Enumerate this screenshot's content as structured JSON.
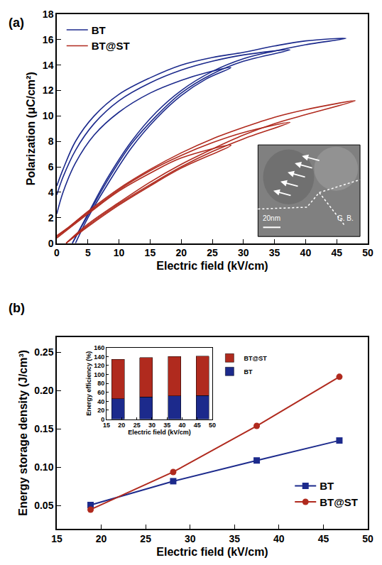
{
  "chart_data": [
    {
      "type": "line",
      "annotations": [
        {
          "text": "(a)"
        },
        {
          "text": "20nm"
        },
        {
          "text": "G. B."
        }
      ],
      "x_label": "Electric field (kV/cm)",
      "y_label": "Polarization (μC/cm²)",
      "xlim": [
        0,
        50
      ],
      "xticks": [
        0,
        5,
        10,
        15,
        20,
        25,
        30,
        35,
        40,
        45,
        50
      ],
      "ylim": [
        0,
        18
      ],
      "yticks": [
        0,
        2,
        4,
        6,
        8,
        10,
        12,
        14,
        16,
        18
      ],
      "legend": "upper left",
      "series": [
        {
          "name": "BT",
          "color": "#1c2a8c",
          "x": [
            3,
            5,
            8,
            12,
            16,
            20,
            24,
            28,
            24,
            20,
            15,
            10,
            6,
            3,
            1,
            0,
            null,
            2.5,
            5,
            8,
            12,
            16,
            20,
            25,
            30,
            37.5,
            30,
            25,
            20,
            15,
            10,
            6,
            3,
            1,
            0,
            null,
            2.5,
            5,
            8,
            12,
            16,
            20,
            25,
            30,
            35,
            40,
            46.5,
            40,
            35,
            30,
            25,
            20,
            15,
            10,
            6,
            3,
            1,
            0
          ],
          "values": [
            0,
            2,
            4.5,
            7.5,
            9.8,
            11.6,
            12.9,
            13.8,
            13.4,
            12.8,
            11.8,
            10.3,
            8.5,
            6.3,
            4,
            2.3,
            null,
            0,
            2.2,
            4.8,
            7.8,
            10,
            11.8,
            13.3,
            14.3,
            15.2,
            14.8,
            14.3,
            13.6,
            12.6,
            11.2,
            9.4,
            7.3,
            5.2,
            3.8,
            null,
            0,
            2.3,
            5,
            8,
            10.3,
            12,
            13.5,
            14.5,
            15.1,
            15.6,
            16.1,
            15.9,
            15.5,
            15,
            14.6,
            14,
            13,
            11.7,
            10,
            8,
            5.8,
            4.5
          ]
        },
        {
          "name": "BT@ST",
          "color": "#b02a1e",
          "x": [
            1.5,
            5,
            10,
            15,
            20,
            28,
            20,
            15,
            10,
            5,
            0,
            null,
            1.5,
            5,
            10,
            15,
            20,
            25,
            30,
            37.5,
            30,
            25,
            20,
            15,
            10,
            5,
            0,
            null,
            1.5,
            5,
            10,
            15,
            20,
            25,
            30,
            35,
            40,
            48,
            40,
            35,
            30,
            25,
            20,
            15,
            10,
            5,
            2,
            0
          ],
          "values": [
            0,
            1.3,
            3,
            4.5,
            5.9,
            7.7,
            6.7,
            5.5,
            4.1,
            2.3,
            0.4,
            null,
            0,
            1.4,
            3.1,
            4.6,
            6,
            7.2,
            8.2,
            9.5,
            8.7,
            7.9,
            6.9,
            5.7,
            4.2,
            2.4,
            0.5,
            null,
            0,
            1.5,
            3.2,
            4.8,
            6.2,
            7.4,
            8.5,
            9.4,
            10.1,
            11.2,
            10.5,
            9.9,
            9.1,
            8.2,
            7.1,
            5.8,
            4.3,
            2.5,
            1.3,
            0.6
          ]
        }
      ]
    },
    {
      "type": "line",
      "annotations": [
        {
          "text": "(b)"
        }
      ],
      "x_label": "Electric field (kV/cm)",
      "y_label": "Energy storage density (J/cm³)",
      "xlim": [
        15,
        50
      ],
      "xticks": [
        15,
        20,
        25,
        30,
        35,
        40,
        45,
        50
      ],
      "ylim": [
        0.02,
        0.27
      ],
      "yticks": [
        0.05,
        {
          "value": 0.1,
          "label": "0.10"
        },
        0.15,
        {
          "value": 0.2,
          "label": "0.20"
        },
        0.25
      ],
      "legend": "lower right",
      "series": [
        {
          "name": "BT",
          "color": "#1c2a8c",
          "marker": "square",
          "x": [
            18.8,
            28.1,
            37.5,
            46.8
          ],
          "values": [
            0.051,
            0.082,
            0.109,
            0.135
          ]
        },
        {
          "name": "BT@ST",
          "color": "#b02a1e",
          "marker": "circle",
          "x": [
            18.8,
            28.1,
            37.5,
            46.8
          ],
          "values": [
            0.045,
            0.094,
            0.154,
            0.218
          ]
        }
      ]
    },
    {
      "type": "bar",
      "stacked": true,
      "x_label": "Electric field (kV/cm)",
      "y_label": "Energy efficiency (%)",
      "xlim": [
        15,
        50
      ],
      "xticks": [
        15,
        20,
        25,
        30,
        35,
        40,
        45,
        50
      ],
      "ylim": [
        0,
        160
      ],
      "yticks": [
        0,
        20,
        40,
        60,
        80,
        100,
        120,
        140,
        160
      ],
      "legend": "right",
      "series": [
        {
          "name": "BT",
          "color": "#1c2a8c",
          "x": [
            18.8,
            28.1,
            37.5,
            46.8
          ],
          "values": [
            46,
            50,
            52,
            53
          ]
        },
        {
          "name": "BT@ST",
          "color": "#b02a1e",
          "x": [
            18.8,
            28.1,
            37.5,
            46.8
          ],
          "values": [
            88,
            88,
            88,
            88
          ]
        }
      ]
    }
  ]
}
